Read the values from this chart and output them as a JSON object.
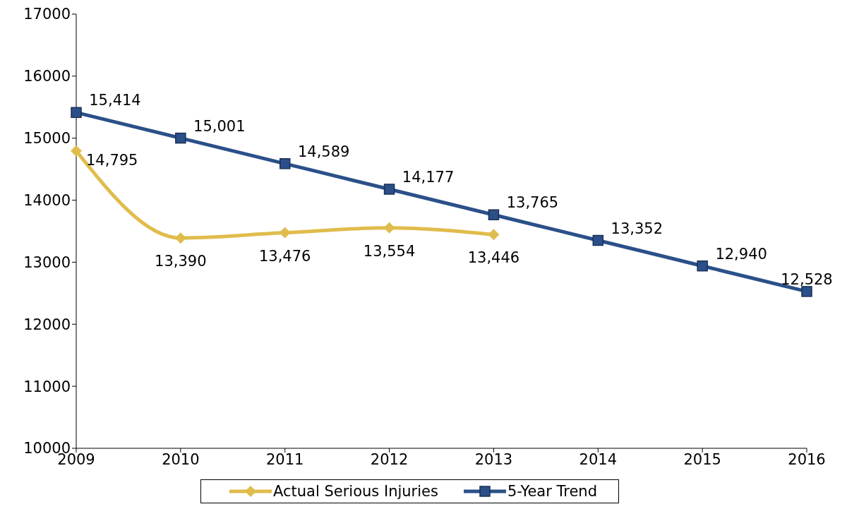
{
  "chart_data": {
    "type": "line",
    "categories": [
      "2009",
      "2010",
      "2011",
      "2012",
      "2013",
      "2014",
      "2015",
      "2016"
    ],
    "series": [
      {
        "name": "Actual Serious Injuries",
        "color": "#e0bc4c",
        "marker": "diamond",
        "values": [
          14795,
          13390,
          13476,
          13554,
          13446,
          null,
          null,
          null
        ],
        "value_labels": [
          "14,795",
          "13,390",
          "13,476",
          "13,554",
          "13,446",
          null,
          null,
          null
        ]
      },
      {
        "name": "5-Year Trend",
        "color": "#2b5089",
        "marker": "square",
        "values": [
          15414,
          15001,
          14589,
          14177,
          13765,
          13352,
          12940,
          12528
        ],
        "value_labels": [
          "15,414",
          "15,001",
          "14,589",
          "14,177",
          "13,765",
          "13,352",
          "12,940",
          "12,528"
        ]
      }
    ],
    "ylim": [
      10000,
      17000
    ],
    "yticks": [
      10000,
      11000,
      12000,
      13000,
      14000,
      15000,
      16000,
      17000
    ],
    "grid": false,
    "legend": "bottom"
  }
}
